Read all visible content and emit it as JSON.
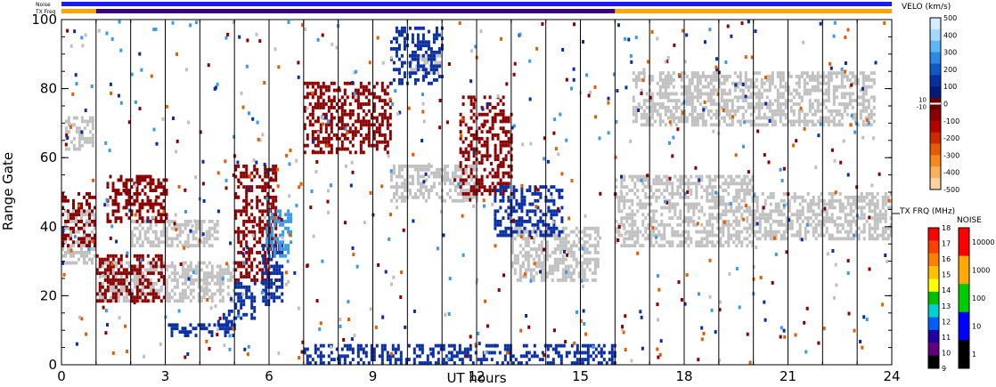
{
  "chart_data": {
    "type": "heatmap",
    "title": "",
    "xlabel": "UT hours",
    "ylabel": "Range Gate",
    "xlim": [
      0,
      24
    ],
    "ylim": [
      0,
      100
    ],
    "x_ticks": [
      "0",
      "3",
      "6",
      "9",
      "12",
      "15",
      "18",
      "21",
      "24"
    ],
    "y_ticks": [
      "0",
      "20",
      "40",
      "60",
      "80",
      "100"
    ],
    "top_bars": [
      {
        "name": "Noise",
        "segments": [
          {
            "from": 0,
            "to": 24,
            "color": "#1a1aff"
          }
        ]
      },
      {
        "name": "TX Freq",
        "segments": [
          {
            "from": 0,
            "to": 1,
            "color": "#ffa500"
          },
          {
            "from": 1,
            "to": 16,
            "color": "#3a0080"
          },
          {
            "from": 16,
            "to": 24,
            "color": "#ffa500"
          }
        ]
      }
    ],
    "scan_boundaries_hours": [
      1,
      2,
      3,
      4,
      5,
      6,
      7,
      8,
      9,
      10,
      11,
      12,
      13,
      14,
      15,
      16,
      17,
      18,
      19,
      20,
      21,
      22,
      23
    ],
    "velocity_colorbar": {
      "title": "VELO (km/s)",
      "ticks": [
        "500",
        "400",
        "300",
        "200",
        "100",
        "0",
        "-100",
        "-200",
        "-300",
        "-400",
        "-500"
      ],
      "inner_labels": [
        "10",
        "-10"
      ],
      "colors": [
        "#d6ecff",
        "#a6d8ff",
        "#5eb6f2",
        "#2a8ae6",
        "#1059c9",
        "#0a2fa3",
        "#041a7a",
        "#6b0000",
        "#8b0000",
        "#b30000",
        "#cc2a00",
        "#e65c00",
        "#f58a1f",
        "#fbb060",
        "#fdd3a0"
      ]
    },
    "tx_freq_colorbar": {
      "title": "TX FRQ (MHz)",
      "ticks": [
        "18",
        "17",
        "16",
        "15",
        "14",
        "13",
        "12",
        "11",
        "10",
        "9"
      ],
      "colors": [
        "#ff0000",
        "#ff4000",
        "#ff8000",
        "#ffc000",
        "#ffff00",
        "#00c000",
        "#00d0d0",
        "#0060ff",
        "#2000a0",
        "#600080",
        "#000000"
      ]
    },
    "noise_colorbar": {
      "title": "NOISE",
      "ticks": [
        "10000",
        "1000",
        "100",
        "10",
        "1"
      ],
      "colors": [
        "#ff0000",
        "#ffaa00",
        "#00cc00",
        "#0000ff",
        "#000000"
      ]
    },
    "series": [
      {
        "name": "ground scatter (grey)",
        "color": "#c0c0c0",
        "regions": [
          {
            "x0": 0,
            "x1": 1,
            "y0": 30,
            "y1": 45
          },
          {
            "x0": 0.1,
            "x1": 0.9,
            "y0": 63,
            "y1": 72
          },
          {
            "x0": 1,
            "x1": 5,
            "y0": 18,
            "y1": 30
          },
          {
            "x0": 2,
            "x1": 4.5,
            "y0": 35,
            "y1": 42
          },
          {
            "x0": 9.5,
            "x1": 12,
            "y0": 48,
            "y1": 58
          },
          {
            "x0": 13,
            "x1": 15.5,
            "y0": 25,
            "y1": 40
          },
          {
            "x0": 16,
            "x1": 20,
            "y0": 35,
            "y1": 55
          },
          {
            "x0": 20,
            "x1": 24,
            "y0": 37,
            "y1": 50
          },
          {
            "x0": 16.5,
            "x1": 23.5,
            "y0": 70,
            "y1": 85
          },
          {
            "x0": 10,
            "x1": 11,
            "y0": 84,
            "y1": 90
          }
        ]
      },
      {
        "name": "negative velocity (red)",
        "color": "#8b0000",
        "regions": [
          {
            "x0": 1,
            "x1": 3,
            "y0": 18,
            "y1": 32
          },
          {
            "x0": 1.3,
            "x1": 3,
            "y0": 42,
            "y1": 55
          },
          {
            "x0": 5,
            "x1": 6.2,
            "y0": 25,
            "y1": 58
          },
          {
            "x0": 7,
            "x1": 9.5,
            "y0": 62,
            "y1": 82
          },
          {
            "x0": 11.5,
            "x1": 13,
            "y0": 50,
            "y1": 78
          },
          {
            "x0": 0,
            "x1": 1,
            "y0": 35,
            "y1": 50
          }
        ]
      },
      {
        "name": "positive velocity (dark blue)",
        "color": "#0a2fa3",
        "regions": [
          {
            "x0": 3,
            "x1": 5,
            "y0": 8,
            "y1": 12
          },
          {
            "x0": 4.5,
            "x1": 5,
            "y0": 10,
            "y1": 16
          },
          {
            "x0": 5,
            "x1": 5.6,
            "y0": 14,
            "y1": 24
          },
          {
            "x0": 5.8,
            "x1": 6.4,
            "y0": 17,
            "y1": 35
          },
          {
            "x0": 12.5,
            "x1": 14.5,
            "y0": 38,
            "y1": 52
          },
          {
            "x0": 9.5,
            "x1": 11,
            "y0": 82,
            "y1": 98
          },
          {
            "x0": 7,
            "x1": 16,
            "y0": 0,
            "y1": 6
          }
        ]
      },
      {
        "name": "positive velocity (light blue)",
        "color": "#3a9ae8",
        "regions": [
          {
            "x0": 5.9,
            "x1": 6.6,
            "y0": 32,
            "y1": 45
          }
        ]
      }
    ]
  }
}
